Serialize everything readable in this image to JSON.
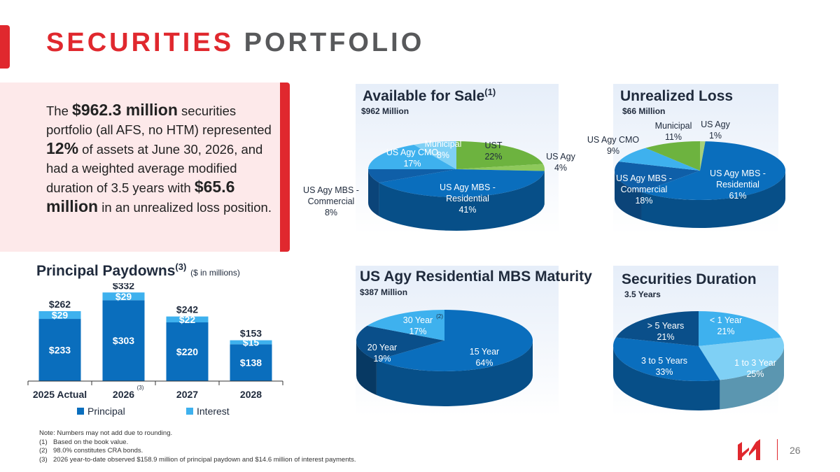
{
  "title": {
    "part1": "SECURITIES",
    "part2": "PORTFOLIO"
  },
  "summary": {
    "t1": "The ",
    "b1": "$962.3 million",
    "t2": " securities portfolio (all AFS, no HTM) represented ",
    "b2": "12%",
    "t3": " of assets at June 30, 2026, and had a weighted average modified duration of 3.5 years with ",
    "b3": "$65.6 million",
    "t4": " in an unrealized loss position."
  },
  "colors": {
    "accent": "#e0282e",
    "dark_blue": "#0a6ebd",
    "mid_blue": "#0f5fa8",
    "light_blue": "#3eb1ee",
    "green": "#6db33f",
    "navy": "#0a3b6b"
  },
  "paydowns": {
    "title": "Principal Paydowns",
    "title_sup": "(3)",
    "subtitle": "($ in millions)",
    "legend": {
      "principal": "Principal",
      "interest": "Interest"
    },
    "x_sup": "(3)"
  },
  "afs": {
    "title": "Available for Sale",
    "title_sup": "(1)",
    "subtitle": "$962 Million"
  },
  "loss": {
    "title": "Unrealized Loss",
    "subtitle": "$66 Million"
  },
  "mbs": {
    "title": "US Agy Residential MBS Maturity",
    "subtitle": "$387 Million",
    "label_sup": "(2)"
  },
  "duration": {
    "title": "Securities Duration",
    "subtitle": "3.5 Years"
  },
  "chart_data": [
    {
      "type": "bar",
      "title": "Principal Paydowns",
      "categories": [
        "2025 Actual",
        "2026",
        "2027",
        "2028"
      ],
      "series": [
        {
          "name": "Principal",
          "values": [
            233,
            303,
            220,
            138
          ],
          "labels": [
            "$233",
            "$303",
            "$220",
            "$138"
          ]
        },
        {
          "name": "Interest",
          "values": [
            29,
            29,
            22,
            15
          ],
          "labels": [
            "$29",
            "$29",
            "$22",
            "$15"
          ]
        }
      ],
      "totals": [
        "$262",
        "$332",
        "$242",
        "$153"
      ],
      "ylim": [
        0,
        340
      ]
    },
    {
      "type": "pie",
      "title": "Available for Sale",
      "slices": [
        {
          "label": "UST",
          "value": 22,
          "pct": "22%",
          "color": "#6db33f"
        },
        {
          "label": "US Agy",
          "value": 4,
          "pct": "4%",
          "color": "#8dc95b"
        },
        {
          "label": "US Agy MBS - Residential",
          "value": 41,
          "pct": "41%",
          "color": "#0a6ebd"
        },
        {
          "label": "US Agy MBS - Commercial",
          "value": 8,
          "pct": "8%",
          "color": "#0f5fa8"
        },
        {
          "label": "US Agy CMO",
          "value": 17,
          "pct": "17%",
          "color": "#3eb1ee"
        },
        {
          "label": "Municipal",
          "value": 8,
          "pct": "8%",
          "color": "#7fd0f5"
        }
      ]
    },
    {
      "type": "pie",
      "title": "Unrealized Loss",
      "slices": [
        {
          "label": "US Agy",
          "value": 1,
          "pct": "1%",
          "color": "#a6d07a"
        },
        {
          "label": "US Agy MBS - Residential",
          "value": 61,
          "pct": "61%",
          "color": "#0a6ebd"
        },
        {
          "label": "US Agy MBS - Commercial",
          "value": 18,
          "pct": "18%",
          "color": "#0f5fa8"
        },
        {
          "label": "US Agy CMO",
          "value": 9,
          "pct": "9%",
          "color": "#3eb1ee"
        },
        {
          "label": "Municipal",
          "value": 11,
          "pct": "11%",
          "color": "#6db33f"
        }
      ]
    },
    {
      "type": "pie",
      "title": "US Agy Residential MBS Maturity",
      "slices": [
        {
          "label": "15 Year",
          "value": 64,
          "pct": "64%",
          "color": "#0a6ebd"
        },
        {
          "label": "20 Year",
          "value": 19,
          "pct": "19%",
          "color": "#0a4f8a"
        },
        {
          "label": "30 Year",
          "value": 17,
          "pct": "17%",
          "color": "#3eb1ee"
        }
      ]
    },
    {
      "type": "pie",
      "title": "Securities Duration",
      "slices": [
        {
          "label": "< 1 Year",
          "value": 21,
          "pct": "21%",
          "color": "#3eb1ee"
        },
        {
          "label": "1 to 3 Year",
          "value": 25,
          "pct": "25%",
          "color": "#7fd0f5"
        },
        {
          "label": "3 to 5 Years",
          "value": 33,
          "pct": "33%",
          "color": "#0a6ebd"
        },
        {
          "label": "> 5 Years",
          "value": 21,
          "pct": "21%",
          "color": "#0a4f8a"
        }
      ]
    }
  ],
  "notes": [
    {
      "num": "",
      "text": "Note: Numbers may not add due to rounding."
    },
    {
      "num": "(1)",
      "text": "Based on the book value."
    },
    {
      "num": "(2)",
      "text": "98.0% constitutes CRA bonds."
    },
    {
      "num": "(3)",
      "text": "2026 year-to-date observed $158.9 million of principal paydown and $14.6 million of interest payments."
    }
  ],
  "logo_icon": "company-logo",
  "page_number": "26"
}
